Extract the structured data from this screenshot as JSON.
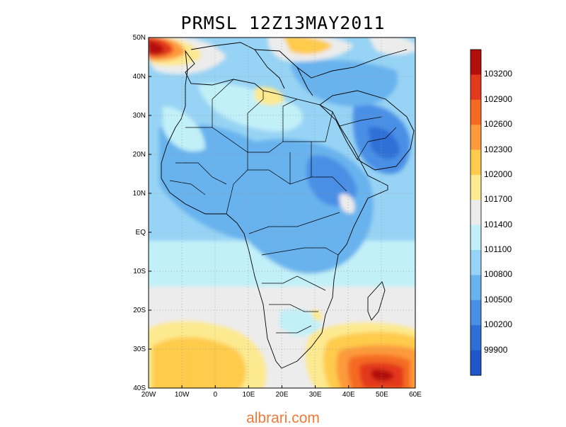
{
  "title": "PRMSL 12Z13MAY2011",
  "footer": "albrari.com",
  "map": {
    "region": "Africa and Middle East",
    "lon_range": [
      -20,
      60
    ],
    "lat_range": [
      -40,
      50
    ],
    "lat_labels": [
      "50N",
      "40N",
      "30N",
      "20N",
      "10N",
      "EQ",
      "10S",
      "20S",
      "30S",
      "40S"
    ],
    "lon_labels": [
      "20W",
      "10W",
      "0",
      "10E",
      "20E",
      "30E",
      "40E",
      "50E",
      "60E"
    ],
    "grid": true
  },
  "colorbar": {
    "levels": [
      "103200",
      "102900",
      "102600",
      "102300",
      "102000",
      "101700",
      "101400",
      "101100",
      "100800",
      "100500",
      "100200",
      "99900"
    ],
    "colors": [
      "#b30f0a",
      "#e3391c",
      "#f46a23",
      "#fd9a3b",
      "#fecb4c",
      "#fde98f",
      "#ececec",
      "#c2f0f8",
      "#97d3f4",
      "#68b2ee",
      "#4a8fe6",
      "#2e6fd6",
      "#1f57c9"
    ]
  }
}
